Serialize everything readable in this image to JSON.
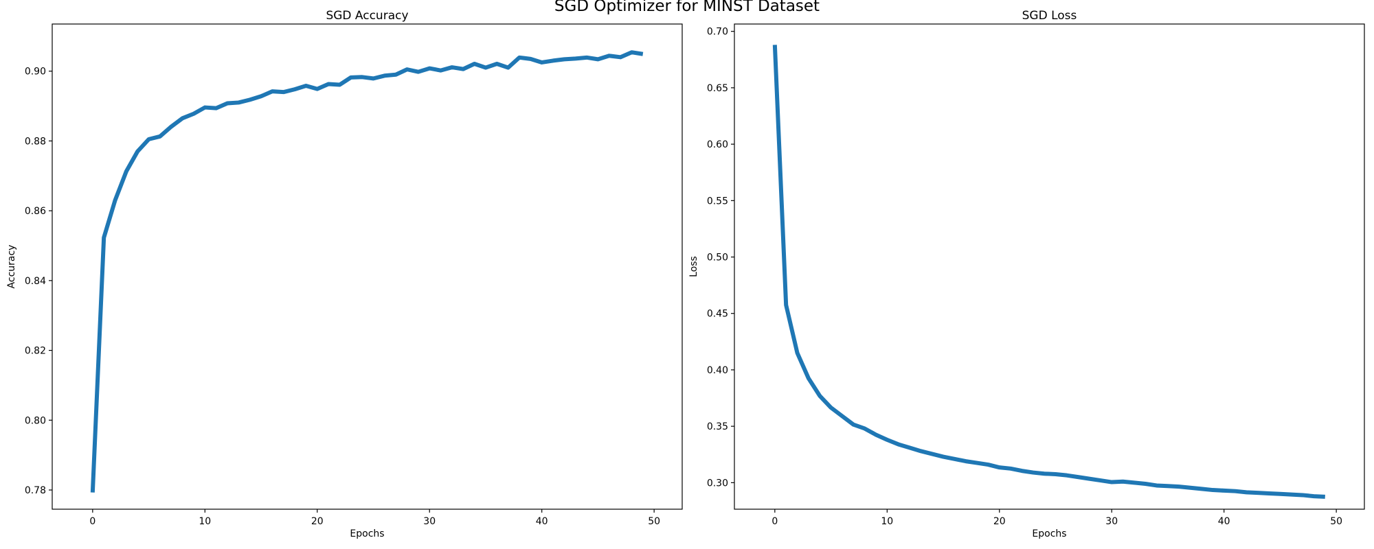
{
  "figure": {
    "suptitle": "SGD Optimizer for MINST Dataset"
  },
  "colors": {
    "line": "#1f77b4",
    "axes": "#000000",
    "background": "#ffffff"
  },
  "chart_data": [
    {
      "type": "line",
      "title": "SGD Accuracy",
      "xlabel": "Epochs",
      "ylabel": "Accuracy",
      "xlim": [
        -3.6,
        52.5
      ],
      "ylim": [
        0.7745,
        0.9135
      ],
      "xticks": [
        0,
        10,
        20,
        30,
        40,
        50
      ],
      "yticks": [
        0.78,
        0.8,
        0.82,
        0.84,
        0.86,
        0.88,
        0.9
      ],
      "ytick_labels": [
        "0.78",
        "0.80",
        "0.82",
        "0.84",
        "0.86",
        "0.88",
        "0.90"
      ],
      "grid": false,
      "x": [
        0,
        1,
        2,
        3,
        4,
        5,
        6,
        7,
        8,
        9,
        10,
        11,
        12,
        13,
        14,
        15,
        16,
        17,
        18,
        19,
        20,
        21,
        22,
        23,
        24,
        25,
        26,
        27,
        28,
        29,
        30,
        31,
        32,
        33,
        34,
        35,
        36,
        37,
        38,
        39,
        40,
        41,
        42,
        43,
        44,
        45,
        46,
        47,
        48,
        49
      ],
      "series": [
        {
          "values": [
            0.7793,
            0.8523,
            0.863,
            0.8713,
            0.877,
            0.8805,
            0.8813,
            0.8841,
            0.8865,
            0.8878,
            0.8896,
            0.8894,
            0.8908,
            0.891,
            0.8918,
            0.8928,
            0.8942,
            0.894,
            0.8948,
            0.8958,
            0.8949,
            0.8963,
            0.8961,
            0.8982,
            0.8983,
            0.8979,
            0.8987,
            0.899,
            0.9005,
            0.8998,
            0.9008,
            0.9002,
            0.9011,
            0.9006,
            0.9021,
            0.901,
            0.9021,
            0.901,
            0.9039,
            0.9035,
            0.9025,
            0.903,
            0.9034,
            0.9036,
            0.9039,
            0.9034,
            0.9044,
            0.904,
            0.9054,
            0.9049
          ]
        }
      ]
    },
    {
      "type": "line",
      "title": "SGD Loss",
      "xlabel": "Epochs",
      "ylabel": "Loss",
      "xlim": [
        -3.6,
        52.5
      ],
      "ylim": [
        0.2765,
        0.7065
      ],
      "xticks": [
        0,
        10,
        20,
        30,
        40,
        50
      ],
      "yticks": [
        0.3,
        0.35,
        0.4,
        0.45,
        0.5,
        0.55,
        0.6,
        0.65,
        0.7
      ],
      "ytick_labels": [
        "0.30",
        "0.35",
        "0.40",
        "0.45",
        "0.50",
        "0.55",
        "0.60",
        "0.65",
        "0.70"
      ],
      "grid": false,
      "x": [
        0,
        1,
        2,
        3,
        4,
        5,
        6,
        7,
        8,
        9,
        10,
        11,
        12,
        13,
        14,
        15,
        16,
        17,
        18,
        19,
        20,
        21,
        22,
        23,
        24,
        25,
        26,
        27,
        28,
        29,
        30,
        31,
        32,
        33,
        34,
        35,
        36,
        37,
        38,
        39,
        40,
        41,
        42,
        43,
        44,
        45,
        46,
        47,
        48,
        49
      ],
      "series": [
        {
          "values": [
            0.688,
            0.4575,
            0.415,
            0.3925,
            0.377,
            0.3665,
            0.359,
            0.3515,
            0.348,
            0.3425,
            0.338,
            0.334,
            0.331,
            0.328,
            0.3255,
            0.323,
            0.321,
            0.319,
            0.3175,
            0.316,
            0.3135,
            0.3125,
            0.3105,
            0.309,
            0.308,
            0.3075,
            0.3065,
            0.305,
            0.3035,
            0.302,
            0.3005,
            0.301,
            0.3,
            0.299,
            0.2975,
            0.297,
            0.2965,
            0.2955,
            0.2945,
            0.2935,
            0.293,
            0.2925,
            0.2915,
            0.291,
            0.2905,
            0.29,
            0.2895,
            0.289,
            0.288,
            0.2875
          ]
        }
      ]
    }
  ]
}
